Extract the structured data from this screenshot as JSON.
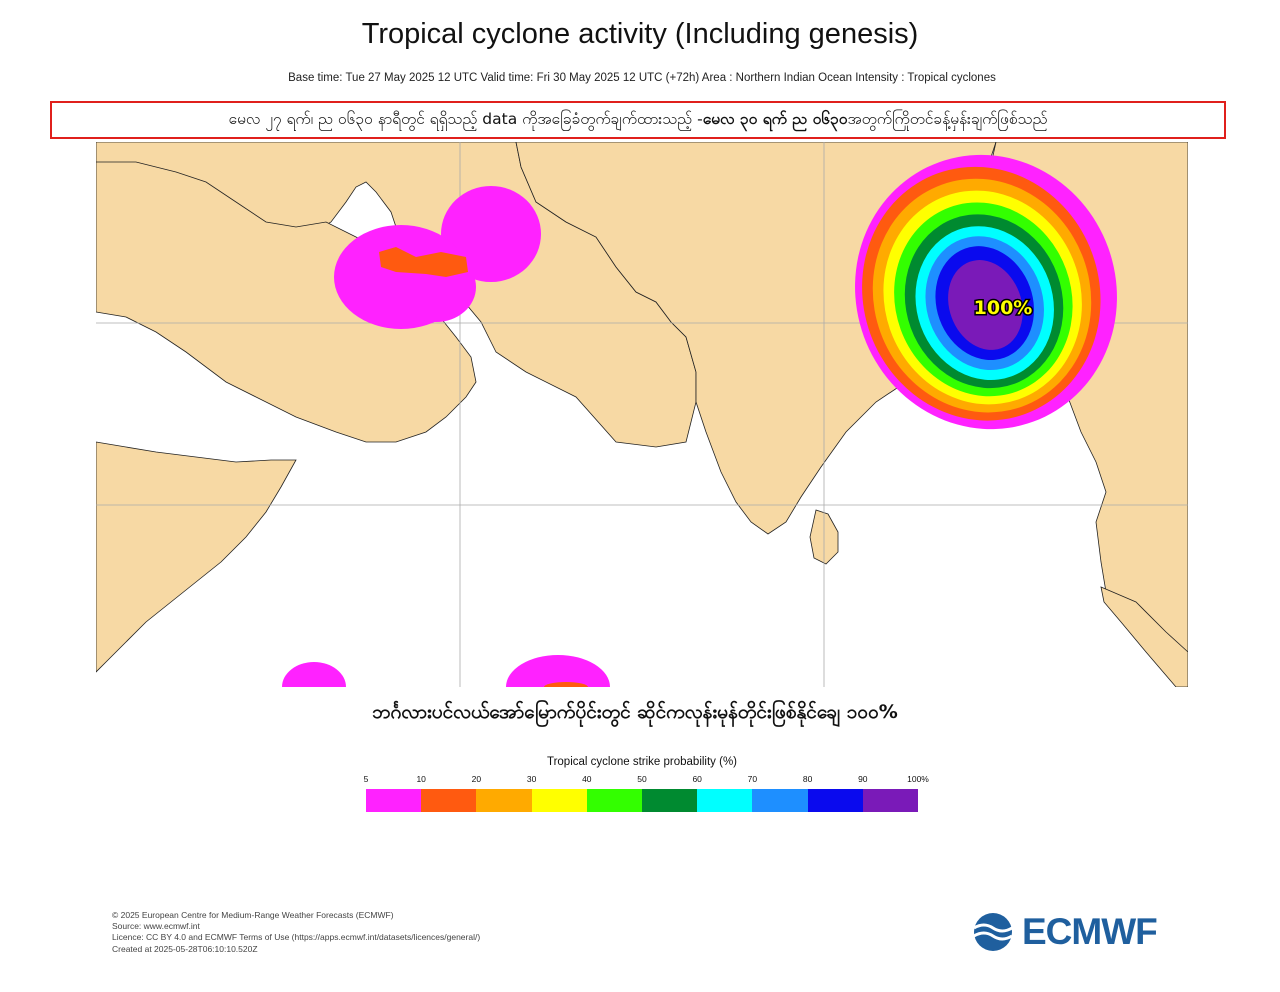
{
  "header": {
    "title": "Tropical cyclone activity (Including genesis)",
    "subtitle": "Base time: Tue 27 May 2025 12 UTC Valid time: Fri 30 May 2025 12 UTC (+72h) Area : Northern Indian Ocean Intensity : Tropical cyclones"
  },
  "note": {
    "part1": "မေလ ၂၇ ရက်၊ ည ၀၆၃၀ နာရီတွင် ရရှိသည့် data ကိုအခြေခံတွက်ချက်ထားသည့် - ",
    "part2_bold": "မေလ ၃၀ ရက် ည ၀၆၃၀",
    "part3": " အတွက်ကြိုတင်ခန့်မှန်းချက်ဖြစ်သည်",
    "border_color": "#e0201c"
  },
  "map": {
    "probability_label": "100%",
    "land_color": "#f7d9a4",
    "ocean_color": "#ffffff"
  },
  "caption": "ဘင်္ဂလားပင်လယ်အော်မြောက်ပိုင်းတွင် ဆိုင်ကလုန်းမုန်တိုင်းဖြစ်နိုင်ချေ ၁၀၀%",
  "legend": {
    "title": "Tropical cyclone strike probability (%)",
    "ticks": [
      "5",
      "10",
      "20",
      "30",
      "40",
      "50",
      "60",
      "70",
      "80",
      "90",
      "100%"
    ],
    "colors": [
      "#ff22ff",
      "#ff5a10",
      "#ffaa00",
      "#ffff00",
      "#33ff00",
      "#008a30",
      "#00ffff",
      "#1e8fff",
      "#0a0aee",
      "#7a1ab8"
    ]
  },
  "footer": {
    "lines": [
      "© 2025 European Centre for Medium-Range Weather Forecasts (ECMWF)",
      "Source: www.ecmwf.int",
      "Licence: CC BY 4.0 and ECMWF Terms of Use (https://apps.ecmwf.int/datasets/licences/general/)",
      "Created at 2025-05-28T06:10:10.520Z"
    ]
  },
  "logo": {
    "text": "ECMWF",
    "color": "#1f5f9e"
  }
}
